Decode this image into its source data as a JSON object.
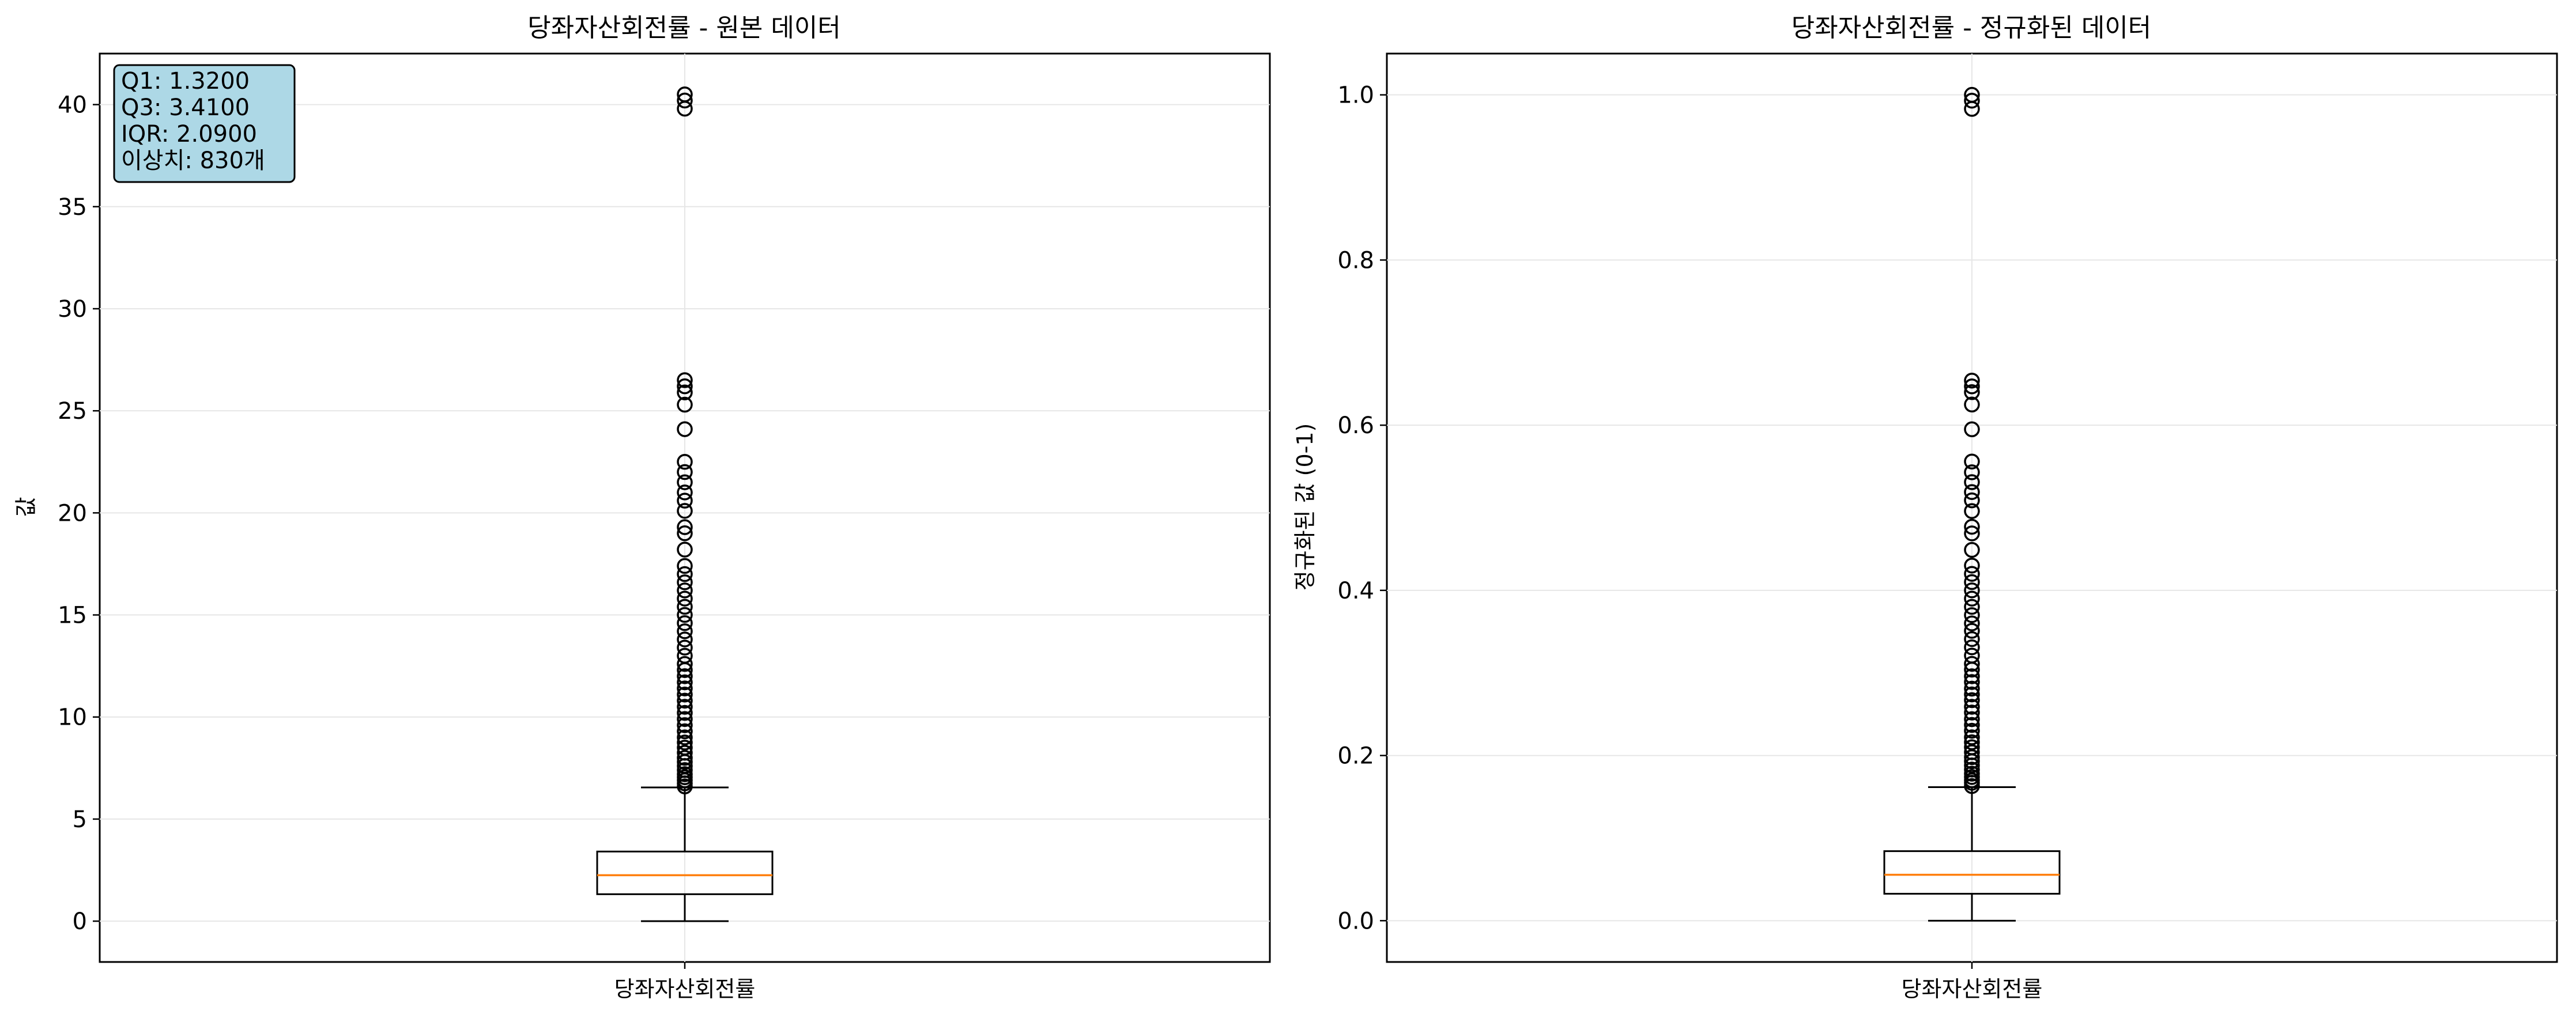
{
  "chart_data": [
    {
      "type": "box",
      "title": "당좌자산회전률 - 원본 데이터",
      "xlabel": "",
      "ylabel": "값",
      "categories": [
        "당좌자산회전률"
      ],
      "ylim": [
        -2,
        42.5
      ],
      "yticks": [
        0,
        5,
        10,
        15,
        20,
        25,
        30,
        35,
        40
      ],
      "ytick_labels": [
        "0",
        "5",
        "10",
        "15",
        "20",
        "25",
        "30",
        "35",
        "40"
      ],
      "grid": true,
      "box": {
        "whisker_low": 0.0,
        "q1": 1.32,
        "median": 2.25,
        "q3": 3.41,
        "whisker_high": 6.55
      },
      "outliers": [
        6.6,
        6.75,
        6.9,
        7.05,
        7.2,
        7.4,
        7.6,
        7.8,
        8.0,
        8.25,
        8.5,
        8.75,
        9.0,
        9.3,
        9.6,
        9.9,
        10.2,
        10.5,
        10.8,
        11.1,
        11.4,
        11.7,
        12.0,
        12.3,
        12.6,
        13.0,
        13.4,
        13.8,
        14.2,
        14.6,
        15.0,
        15.4,
        15.8,
        16.2,
        16.6,
        17.0,
        17.4,
        18.2,
        19.0,
        19.3,
        20.1,
        20.6,
        21.0,
        21.5,
        22.0,
        22.5,
        24.1,
        25.3,
        25.9,
        26.2,
        26.5,
        39.8,
        40.2,
        40.5
      ],
      "annotation": {
        "lines": [
          "Q1: 1.3200",
          "Q3: 3.4100",
          "IQR: 2.0900",
          "이상치: 830개"
        ],
        "position": "top-left",
        "background": "#add8e6"
      }
    },
    {
      "type": "box",
      "title": "당좌자산회전률 - 정규화된 데이터",
      "xlabel": "",
      "ylabel": "정규화된 값 (0-1)",
      "categories": [
        "당좌자산회전률"
      ],
      "ylim": [
        -0.05,
        1.05
      ],
      "yticks": [
        0.0,
        0.2,
        0.4,
        0.6,
        0.8,
        1.0
      ],
      "ytick_labels": [
        "0.0",
        "0.2",
        "0.4",
        "0.6",
        "0.8",
        "1.0"
      ],
      "grid": true,
      "box": {
        "whisker_low": 0.0,
        "q1": 0.0326,
        "median": 0.0556,
        "q3": 0.0842,
        "whisker_high": 0.1617
      },
      "outliers": [
        0.163,
        0.167,
        0.17,
        0.174,
        0.178,
        0.183,
        0.188,
        0.193,
        0.198,
        0.204,
        0.21,
        0.216,
        0.222,
        0.23,
        0.237,
        0.244,
        0.252,
        0.259,
        0.267,
        0.274,
        0.281,
        0.289,
        0.296,
        0.304,
        0.311,
        0.321,
        0.331,
        0.341,
        0.351,
        0.36,
        0.37,
        0.38,
        0.39,
        0.4,
        0.41,
        0.42,
        0.43,
        0.449,
        0.469,
        0.477,
        0.496,
        0.509,
        0.519,
        0.531,
        0.543,
        0.556,
        0.595,
        0.625,
        0.64,
        0.647,
        0.654,
        0.983,
        0.993,
        1.0
      ],
      "annotation": null
    }
  ],
  "colors": {
    "box": "#000000",
    "median": "#ff7f0e",
    "grid": "#e6e6e6",
    "annotation_bg": "#add8e6"
  }
}
